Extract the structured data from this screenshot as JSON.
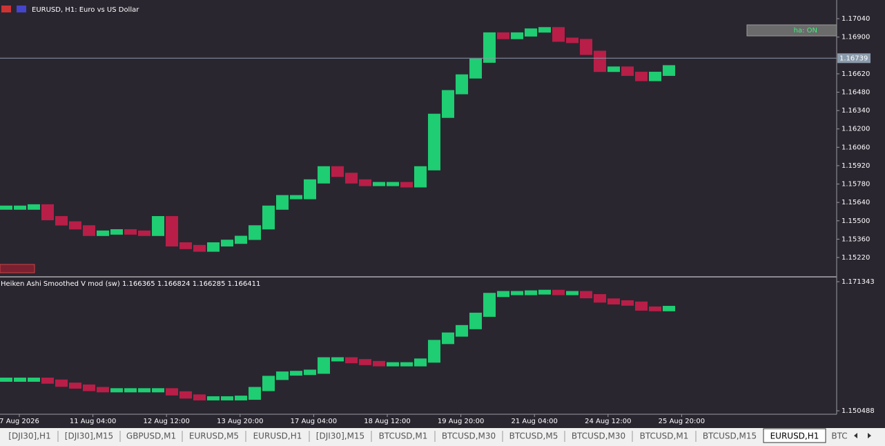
{
  "window": {
    "title": "EURUSD, H1:  Euro vs US Dollar",
    "ha_button": "ha: ON"
  },
  "main_chart": {
    "ylim": [
      1.15078,
      1.17172
    ],
    "yticks": [
      {
        "value": 1.1704,
        "label": "1.17040"
      },
      {
        "value": 1.169,
        "label": "1.16900"
      },
      {
        "value": 1.1662,
        "label": "1.16620"
      },
      {
        "value": 1.1648,
        "label": "1.16480"
      },
      {
        "value": 1.1634,
        "label": "1.16340"
      },
      {
        "value": 1.162,
        "label": "1.16200"
      },
      {
        "value": 1.1606,
        "label": "1.16060"
      },
      {
        "value": 1.1592,
        "label": "1.15920"
      },
      {
        "value": 1.1578,
        "label": "1.15780"
      },
      {
        "value": 1.1564,
        "label": "1.15640"
      },
      {
        "value": 1.155,
        "label": "1.15500"
      },
      {
        "value": 1.1536,
        "label": "1.15360"
      },
      {
        "value": 1.1522,
        "label": "1.15220"
      }
    ],
    "current_price": 1.16739,
    "values": [
      1.156,
      1.156,
      1.1561,
      1.1552,
      1.1548,
      1.1545,
      1.154,
      1.1541,
      1.1542,
      1.1541,
      1.154,
      1.1552,
      1.1532,
      1.153,
      1.1528,
      1.1532,
      1.1534,
      1.1537,
      1.1545,
      1.156,
      1.1568,
      1.1568,
      1.158,
      1.159,
      1.1585,
      1.158,
      1.1578,
      1.1578,
      1.1578,
      1.1577,
      1.159,
      1.163,
      1.1648,
      1.166,
      1.1672,
      1.1692,
      1.169,
      1.1692,
      1.1695,
      1.1696,
      1.1688,
      1.1687,
      1.1678,
      1.1665,
      1.1666,
      1.1662,
      1.1658,
      1.1662,
      1.1667
    ]
  },
  "indicator": {
    "title": "Heiken Ashi Smoothed V mod (sw) 1.166365 1.166824 1.166285 1.166411",
    "ylim": [
      1.14993,
      1.172012
    ],
    "yticks": [
      1.171343,
      1.150488
    ],
    "values": [
      1.15551,
      1.15551,
      1.15551,
      1.1552,
      1.1547,
      1.1544,
      1.154,
      1.1538,
      1.1538,
      1.1538,
      1.1538,
      1.1538,
      1.1533,
      1.1528,
      1.1525,
      1.1525,
      1.1525,
      1.1526,
      1.154,
      1.1558,
      1.1565,
      1.1566,
      1.1568,
      1.1588,
      1.1588,
      1.1585,
      1.1582,
      1.158,
      1.158,
      1.158,
      1.1586,
      1.1616,
      1.1628,
      1.164,
      1.166,
      1.1692,
      1.1695,
      1.1695,
      1.1696,
      1.1697,
      1.1695,
      1.1695,
      1.169,
      1.1683,
      1.168,
      1.1678,
      1.167,
      1.1669,
      1.1671
    ]
  },
  "time_axis": [
    "7 Aug 2026",
    "11 Aug 04:00",
    "12 Aug 12:00",
    "13 Aug 20:00",
    "17 Aug 04:00",
    "18 Aug 12:00",
    "19 Aug 20:00",
    "21 Aug 04:00",
    "24 Aug 12:00",
    "25 Aug 20:00"
  ],
  "tabs": [
    "[DJI30],H1",
    "[DJI30],M15",
    "GBPUSD,M1",
    "EURUSD,M5",
    "EURUSD,H1",
    "[DJI30],M15",
    "BTCUSD,M1",
    "BTCUSD,M30",
    "BTCUSD,M5",
    "BTCUSD,M30",
    "BTCUSD,M1",
    "BTCUSD,M15",
    "EURUSD,H1",
    "BTC"
  ]
}
